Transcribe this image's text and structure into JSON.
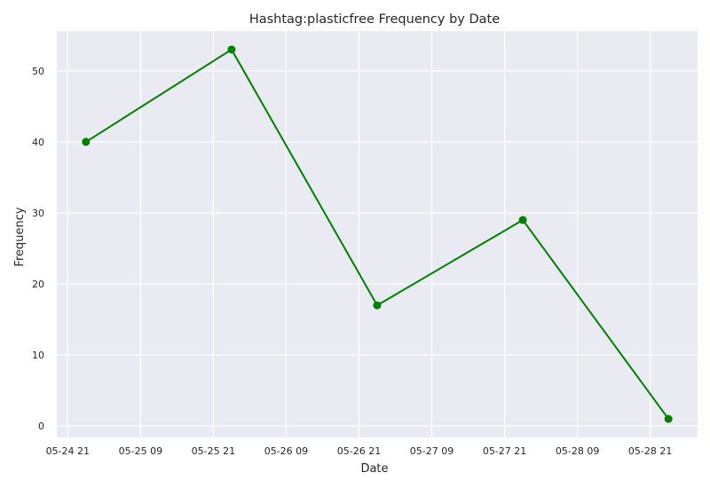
{
  "chart_data": {
    "type": "line",
    "title": "Hashtag:plasticfree Frequency by Date",
    "xlabel": "Date",
    "ylabel": "Frequency",
    "x": [
      "2023-05-25",
      "2023-05-26",
      "2023-05-27",
      "2023-05-28",
      "2023-05-29"
    ],
    "series": [
      {
        "values": [
          40,
          53,
          17,
          29,
          1
        ]
      }
    ],
    "xtick_labels": [
      "05-24 21",
      "05-25 09",
      "05-25 21",
      "05-26 09",
      "05-26 21",
      "05-27 09",
      "05-27 21",
      "05-28 09",
      "05-28 21"
    ],
    "ytick_labels": [
      "0",
      "10",
      "20",
      "30",
      "40",
      "50"
    ],
    "yticks": [
      0,
      10,
      20,
      30,
      40,
      50
    ],
    "ylim": [
      -1.6,
      55.6
    ],
    "xlim_hours": [
      -4.8,
      100.8
    ],
    "grid": true,
    "line_color": "#008000",
    "background_color": "#eaeaf2",
    "grid_color": "#ffffff",
    "marker": "circle"
  }
}
